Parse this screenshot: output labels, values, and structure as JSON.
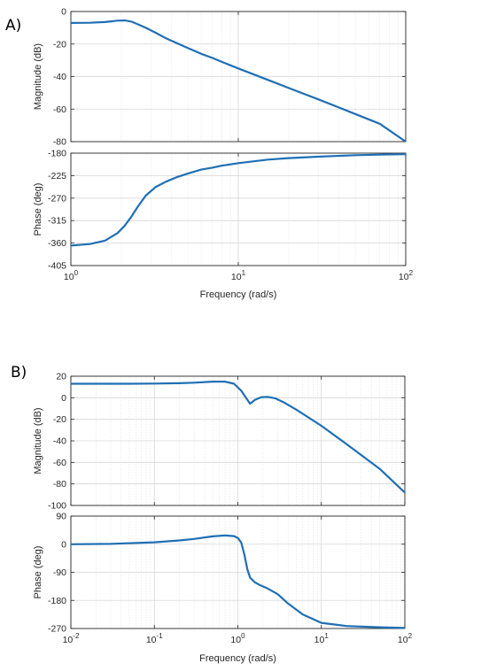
{
  "figure_labels": [
    "A)",
    "B)"
  ],
  "chart_data": [
    {
      "type": "line",
      "panel": "A)",
      "xscale": "log",
      "xlim": [
        1,
        100
      ],
      "xlabel": "Frequency  (rad/s)",
      "x_ticks": [
        {
          "base": "10",
          "exp": "0"
        },
        {
          "base": "10",
          "exp": "1"
        },
        {
          "base": "10",
          "exp": "2"
        }
      ],
      "grid": true,
      "line_color": "#1f6fb4",
      "subplots": [
        {
          "ylabel": "Magnitude (dB)",
          "ylim": [
            -80,
            0
          ],
          "yticks": [
            "0",
            "-20",
            "-40",
            "-60",
            "-80"
          ],
          "series": [
            {
              "x": [
                1,
                1.3,
                1.6,
                1.9,
                2.1,
                2.3,
                2.5,
                2.8,
                3.2,
                3.7,
                4.3,
                5,
                6,
                7,
                8,
                10,
                15,
                20,
                30,
                50,
                70,
                100
              ],
              "y": [
                -7,
                -6.9,
                -6.5,
                -5.6,
                -5.5,
                -6.2,
                -7.8,
                -10,
                -13,
                -16.5,
                -19.5,
                -22.5,
                -26,
                -28.5,
                -31,
                -35,
                -42,
                -47,
                -54,
                -63,
                -69,
                -80
              ]
            }
          ]
        },
        {
          "ylabel": "Phase (deg)",
          "ylim": [
            -405,
            -180
          ],
          "yticks": [
            "-180",
            "-225",
            "-270",
            "-315",
            "-360",
            "-405"
          ],
          "series": [
            {
              "x": [
                1,
                1.3,
                1.6,
                1.9,
                2.1,
                2.3,
                2.5,
                2.8,
                3.2,
                3.7,
                4.3,
                5,
                6,
                7,
                8,
                10,
                15,
                20,
                30,
                50,
                70,
                100
              ],
              "y": [
                -365,
                -362,
                -355,
                -340,
                -325,
                -307,
                -288,
                -265,
                -248,
                -237,
                -228,
                -221,
                -213,
                -209,
                -205,
                -200,
                -193,
                -190,
                -187,
                -184,
                -183,
                -182
              ]
            }
          ]
        }
      ]
    },
    {
      "type": "line",
      "panel": "B)",
      "xscale": "log",
      "xlim": [
        0.01,
        100
      ],
      "xlabel": "Frequency  (rad/s)",
      "x_ticks": [
        {
          "base": "10",
          "exp": "-2"
        },
        {
          "base": "10",
          "exp": "-1"
        },
        {
          "base": "10",
          "exp": "0"
        },
        {
          "base": "10",
          "exp": "1"
        },
        {
          "base": "10",
          "exp": "2"
        }
      ],
      "grid": true,
      "line_color": "#1f6fb4",
      "subplots": [
        {
          "ylabel": "Magnitude (dB)",
          "ylim": [
            -100,
            20
          ],
          "yticks": [
            "20",
            "0",
            "-20",
            "-40",
            "-60",
            "-80",
            "-100"
          ],
          "series": [
            {
              "x": [
                0.01,
                0.05,
                0.1,
                0.2,
                0.3,
                0.5,
                0.7,
                0.9,
                1.1,
                1.25,
                1.4,
                1.6,
                1.9,
                2.3,
                2.8,
                3.5,
                5,
                10,
                20,
                50,
                100
              ],
              "y": [
                13,
                13,
                13.2,
                13.5,
                14,
                15,
                15,
                13,
                6.5,
                0,
                -5.5,
                -2,
                0.5,
                0.8,
                -0.5,
                -4,
                -11,
                -26,
                -43,
                -66,
                -88
              ]
            }
          ]
        },
        {
          "ylabel": "Phase (deg)",
          "ylim": [
            -270,
            90
          ],
          "yticks": [
            "90",
            "0",
            "-90",
            "-180",
            "-270"
          ],
          "series": [
            {
              "x": [
                0.01,
                0.03,
                0.1,
                0.2,
                0.3,
                0.5,
                0.7,
                0.9,
                1,
                1.1,
                1.2,
                1.3,
                1.4,
                1.6,
                1.8,
                2.2,
                3,
                4,
                6,
                10,
                20,
                50,
                100
              ],
              "y": [
                0,
                1,
                6,
                12,
                17,
                25,
                28,
                26,
                20,
                5,
                -35,
                -80,
                -107,
                -122,
                -130,
                -140,
                -160,
                -190,
                -225,
                -252,
                -262,
                -266,
                -268
              ]
            }
          ]
        }
      ]
    }
  ]
}
